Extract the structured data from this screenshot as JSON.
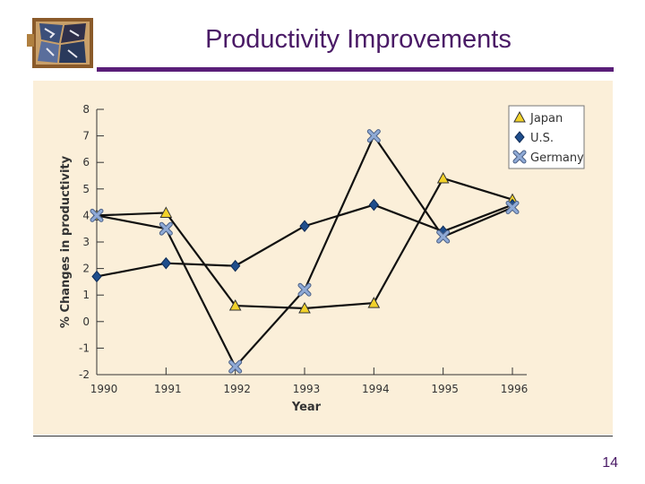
{
  "slide": {
    "title": "Productivity Improvements",
    "page_number": "14"
  },
  "colors": {
    "title": "#4a1a66",
    "rule": "#5a1e78",
    "panel_bg": "#fbefd9",
    "japan": "#f2d22a",
    "us": "#1f4e8c",
    "germany": "#8faad6",
    "line": "#111111"
  },
  "logo": {
    "icon": "cracked-stone-tile-logo"
  },
  "chart_data": {
    "type": "line",
    "x": [
      "1990",
      "1991",
      "1992",
      "1993",
      "1994",
      "1995",
      "1996"
    ],
    "xlabel": "Year",
    "ylabel": "% Changes in productivity",
    "ylim": [
      -2,
      8
    ],
    "yticks": [
      "8",
      "7",
      "6",
      "5",
      "4",
      "3",
      "2",
      "1",
      "0",
      "-1",
      "-2"
    ],
    "grid": false,
    "legend_position": "top-right",
    "series": [
      {
        "name": "Japan",
        "marker": "triangle",
        "values": [
          4.0,
          4.1,
          0.6,
          0.5,
          0.7,
          5.4,
          4.6
        ]
      },
      {
        "name": "U.S.",
        "marker": "diamond",
        "values": [
          1.7,
          2.2,
          2.1,
          3.6,
          4.4,
          3.4,
          4.4
        ]
      },
      {
        "name": "Germany",
        "marker": "x",
        "values": [
          4.0,
          3.5,
          -1.7,
          1.2,
          7.0,
          3.2,
          4.3
        ]
      }
    ]
  }
}
